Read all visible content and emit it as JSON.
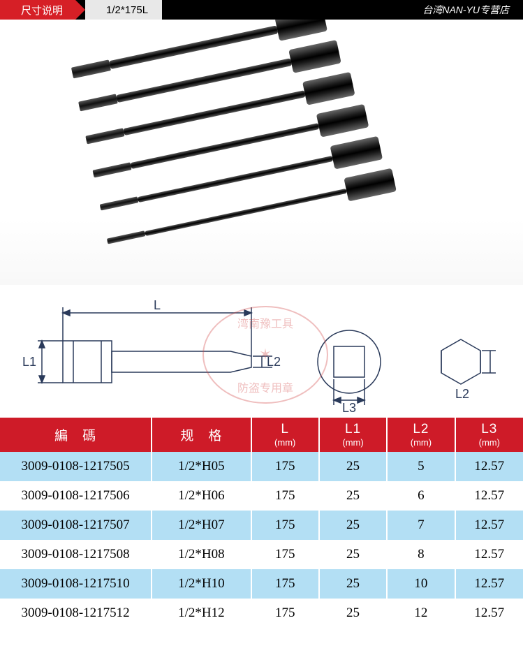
{
  "header": {
    "tab": "尺寸说明",
    "size": "1/2*175L",
    "shop": "台湾NAN-YU专营店"
  },
  "diagram": {
    "labels": {
      "L": "L",
      "L1": "L1",
      "L2": "L2",
      "L3": "L3"
    }
  },
  "watermark": {
    "top": "湾南豫工具",
    "bottom": "防盗专用章"
  },
  "table": {
    "headers": {
      "code": "編　碼",
      "spec": "规　格",
      "L": {
        "main": "L",
        "sub": "(mm)"
      },
      "L1": {
        "main": "L1",
        "sub": "(mm)"
      },
      "L2": {
        "main": "L2",
        "sub": "(mm)"
      },
      "L3": {
        "main": "L3",
        "sub": "(mm)"
      }
    },
    "rows": [
      {
        "code": "3009-0108-1217505",
        "spec": "1/2*H05",
        "L": "175",
        "L1": "25",
        "L2": "5",
        "L3": "12.57"
      },
      {
        "code": "3009-0108-1217506",
        "spec": "1/2*H06",
        "L": "175",
        "L1": "25",
        "L2": "6",
        "L3": "12.57"
      },
      {
        "code": "3009-0108-1217507",
        "spec": "1/2*H07",
        "L": "175",
        "L1": "25",
        "L2": "7",
        "L3": "12.57"
      },
      {
        "code": "3009-0108-1217508",
        "spec": "1/2*H08",
        "L": "175",
        "L1": "25",
        "L2": "8",
        "L3": "12.57"
      },
      {
        "code": "3009-0108-1217510",
        "spec": "1/2*H10",
        "L": "175",
        "L1": "25",
        "L2": "10",
        "L3": "12.57"
      },
      {
        "code": "3009-0108-1217512",
        "spec": "1/2*H12",
        "L": "175",
        "L1": "25",
        "L2": "12",
        "L3": "12.57"
      }
    ]
  },
  "styles": {
    "header_red": "#d61f26",
    "header_black": "#000000",
    "table_header_bg": "#ce1b28",
    "row_alt_bg": "#b3dff4",
    "diagram_stroke": "#2a3a5a",
    "table_font_size": 19
  }
}
